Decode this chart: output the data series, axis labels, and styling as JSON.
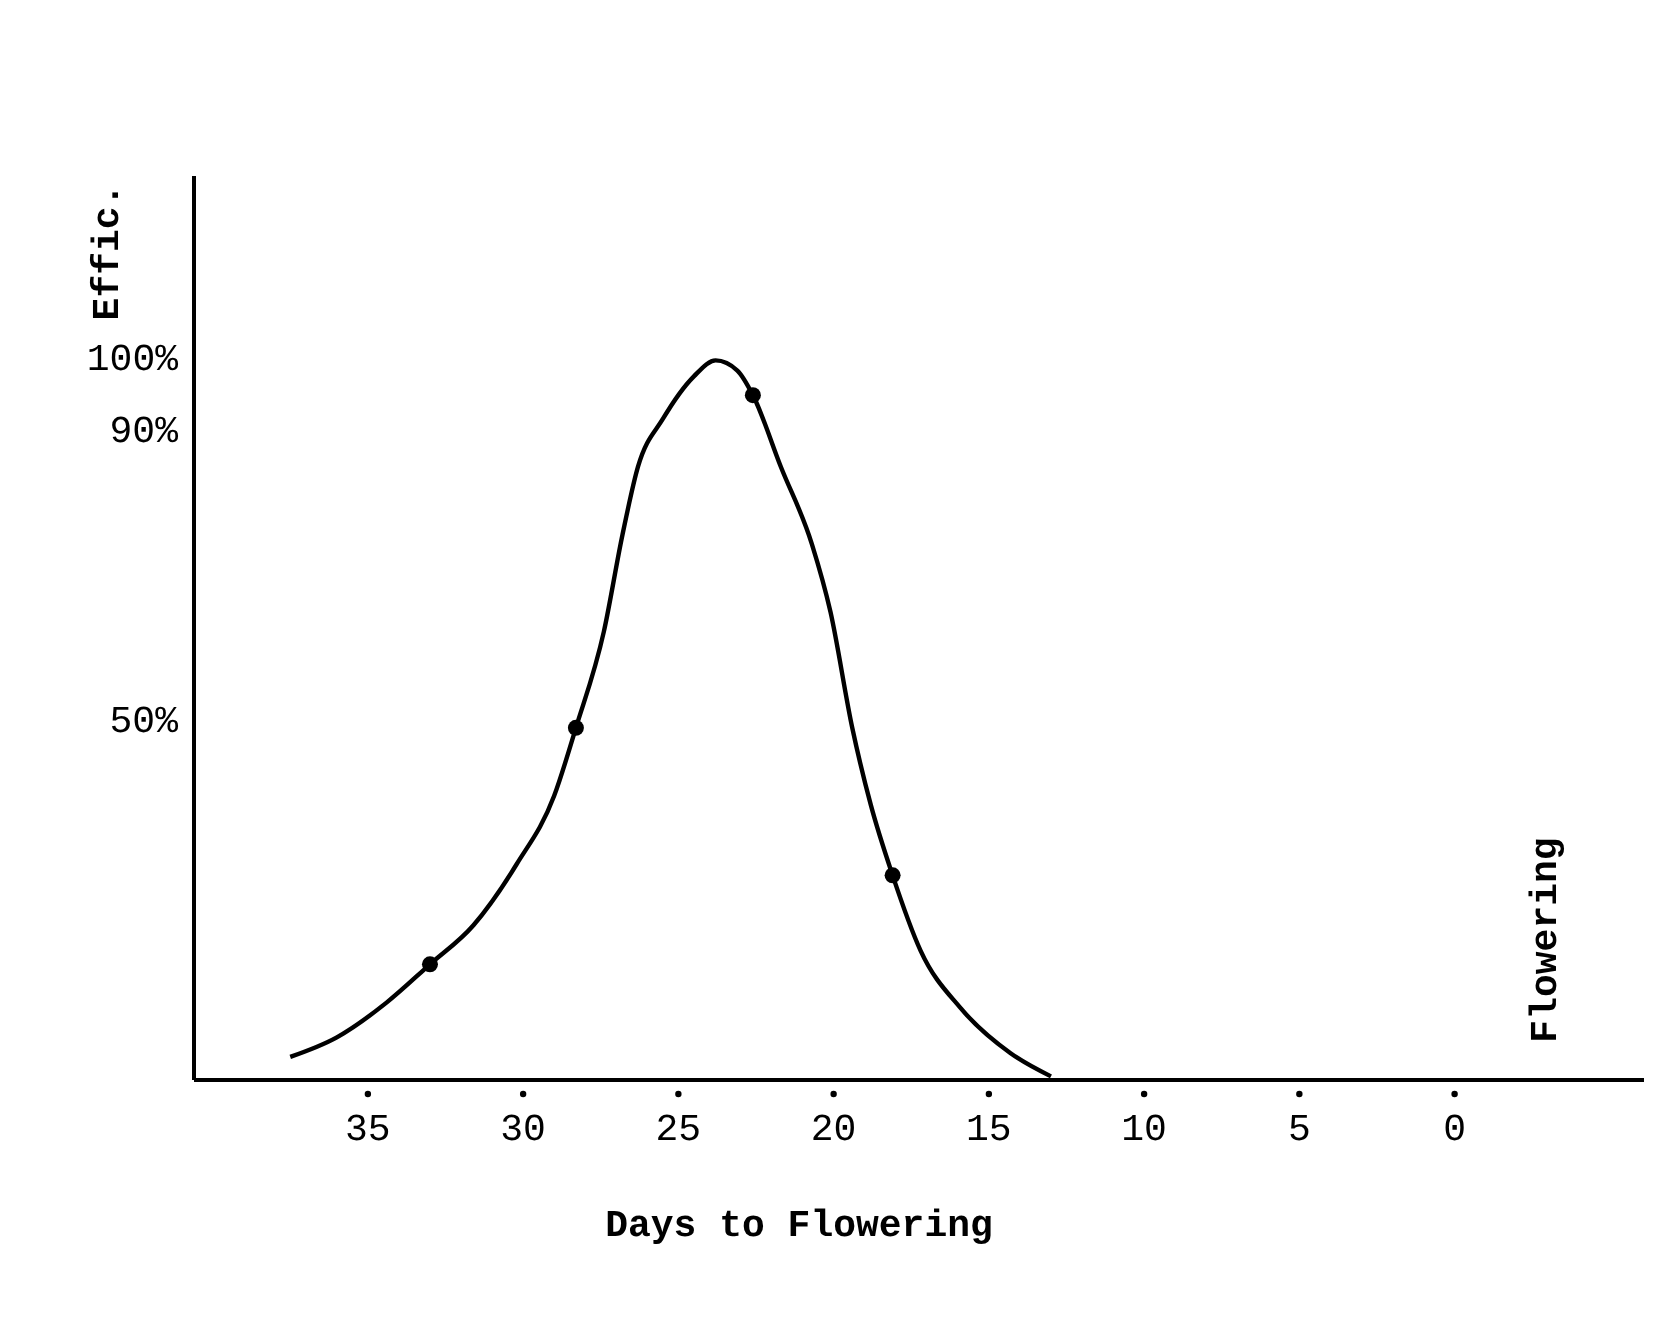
{
  "chart_data": {
    "type": "line",
    "xlabel": "Days to Flowering",
    "ylabel": "Effic.",
    "xlim": [
      40.6,
      -6.1
    ],
    "xticks": [
      35,
      30,
      25,
      20,
      15,
      10,
      5,
      0
    ],
    "ylim": [
      0,
      125
    ],
    "yticks": [
      {
        "value": 50,
        "label": "50%"
      },
      {
        "value": 90,
        "label": "90%"
      },
      {
        "value": 100,
        "label": "100%"
      }
    ],
    "grid": false,
    "annotations": [
      "Flowering"
    ],
    "series": [
      {
        "color": "#000000",
        "marker": "none",
        "x": [
          37.5,
          36.0,
          34.4,
          33.0,
          31.6,
          30.2,
          29.0,
          28.3,
          27.4,
          26.8,
          26.3,
          25.5,
          24.5,
          23.8,
          23.1,
          22.6,
          21.7,
          20.7,
          20.1,
          19.4,
          18.8,
          18.1,
          17.2,
          15.9,
          14.3,
          13.0
        ],
        "values": [
          3.2,
          5.9,
          10.7,
          16.0,
          21.4,
          29.9,
          39.3,
          48.7,
          62.0,
          75.4,
          84.8,
          91.4,
          97.3,
          99.5,
          98.1,
          94.7,
          84.8,
          74.1,
          64.7,
          48.7,
          38.0,
          28.3,
          17.9,
          9.9,
          3.7,
          0.5
        ]
      },
      {
        "type": "scatter",
        "color": "#000000",
        "marker": "circle",
        "x": [
          33.0,
          28.3,
          22.6,
          18.1
        ],
        "values": [
          16.0,
          48.7,
          94.7,
          28.3
        ]
      }
    ]
  }
}
